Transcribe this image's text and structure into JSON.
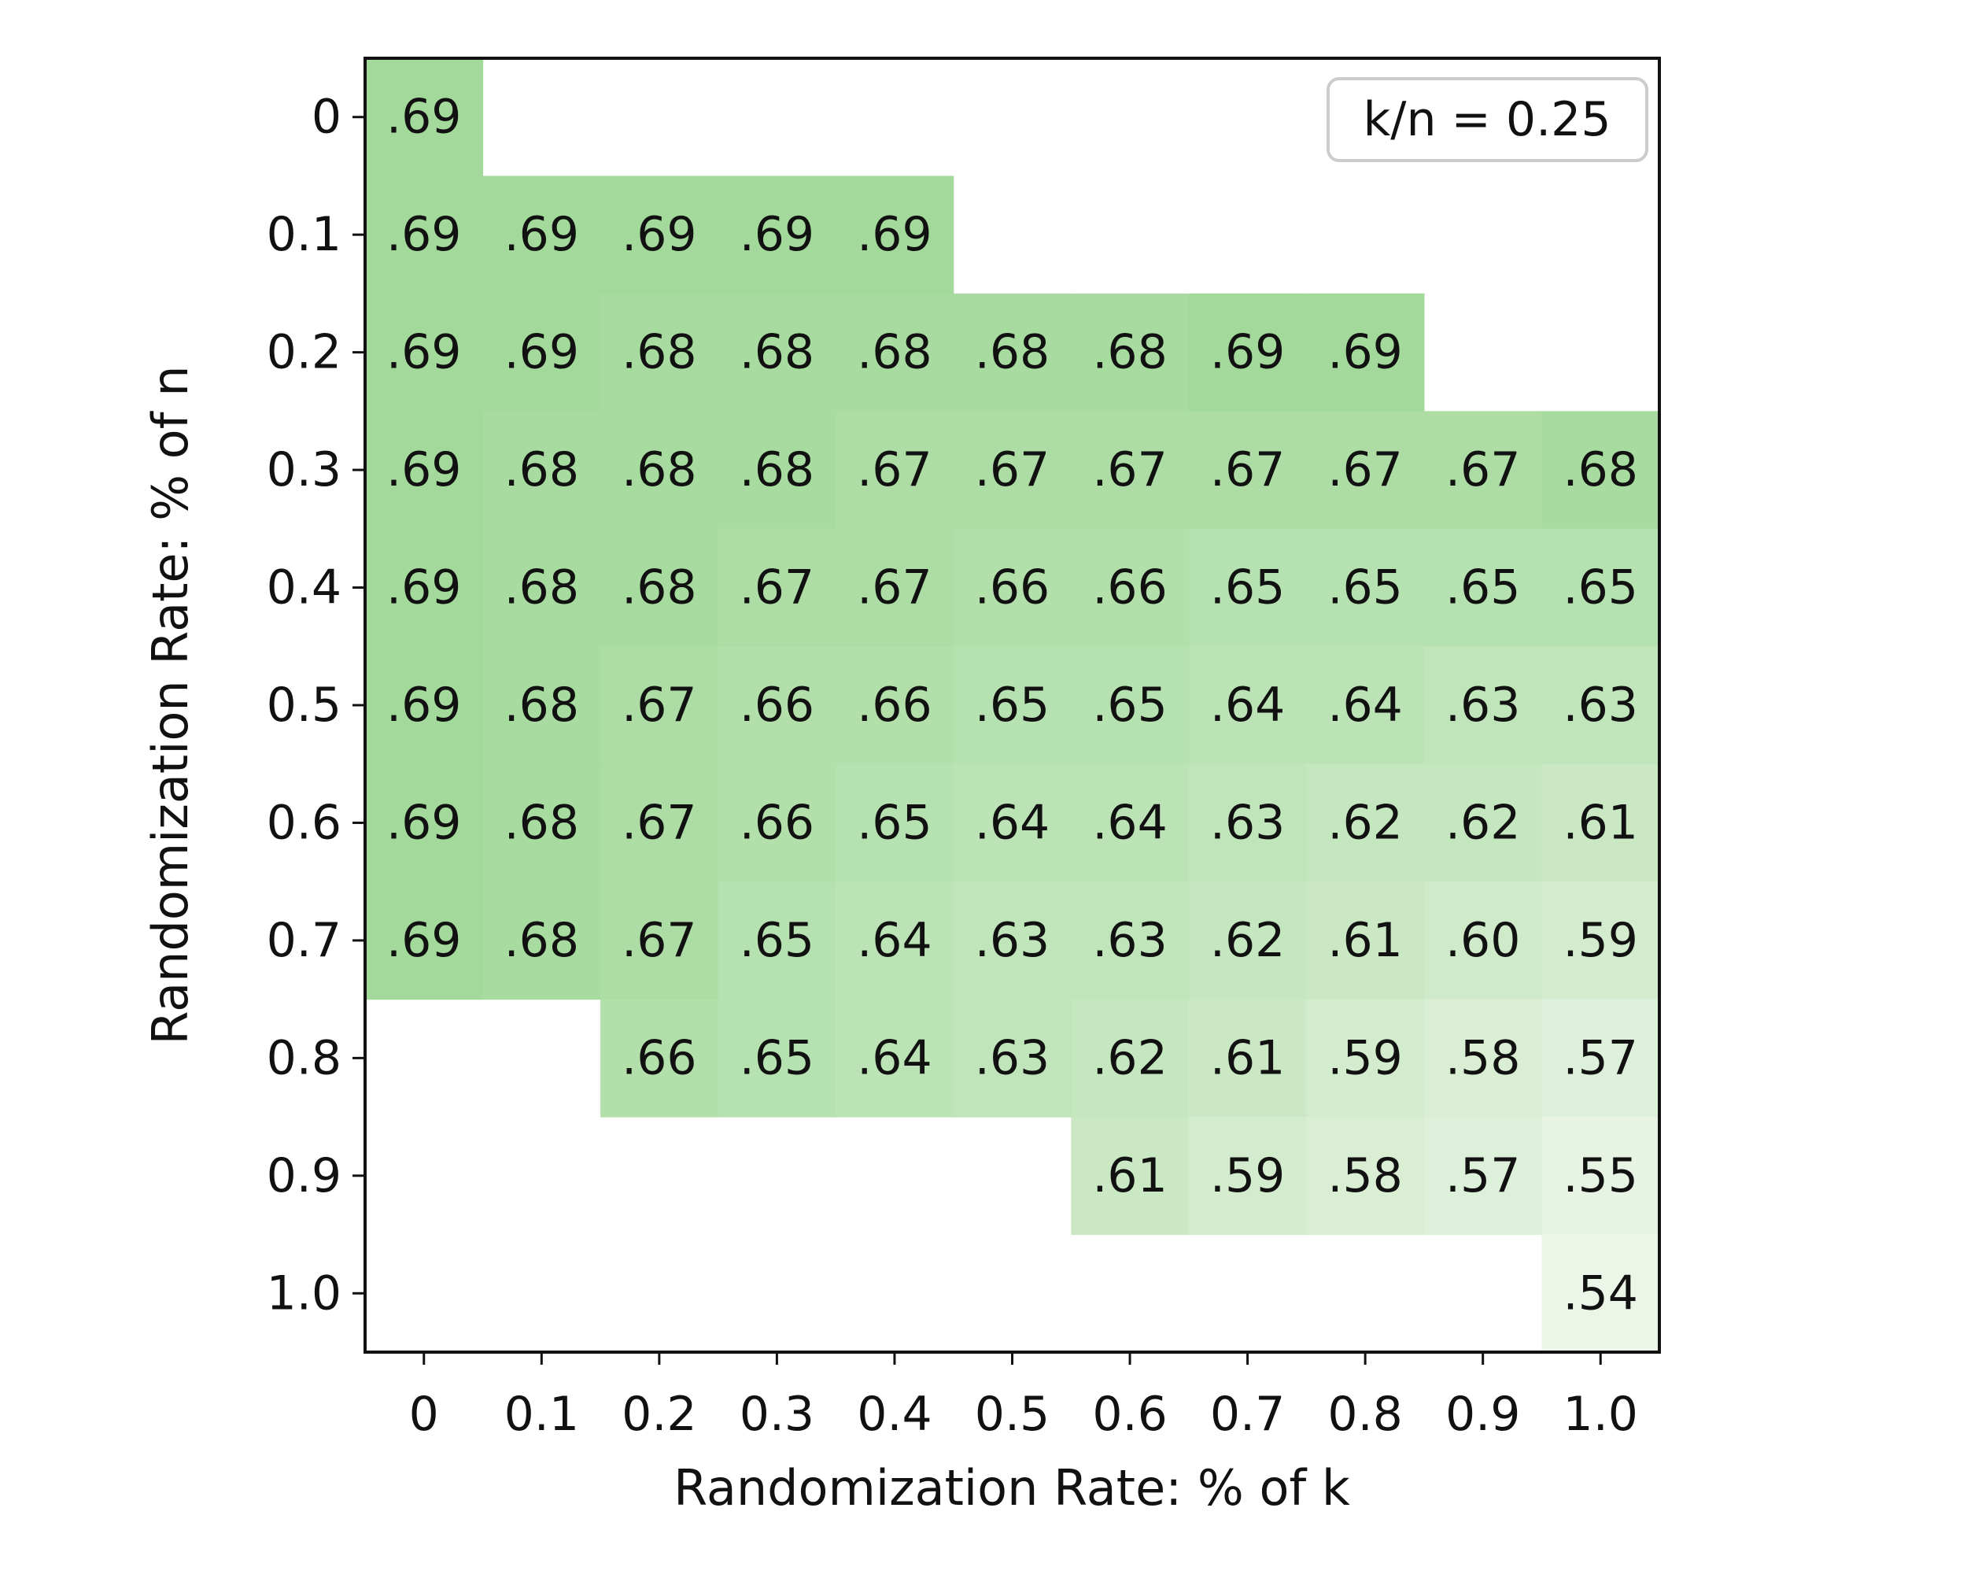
{
  "chart_data": {
    "type": "heatmap",
    "title": "",
    "xlabel": "Randomization Rate: % of k",
    "ylabel": "Randomization Rate: % of n",
    "x_categories": [
      "0",
      "0.1",
      "0.2",
      "0.3",
      "0.4",
      "0.5",
      "0.6",
      "0.7",
      "0.8",
      "0.9",
      "1.0"
    ],
    "y_categories": [
      "0",
      "0.1",
      "0.2",
      "0.3",
      "0.4",
      "0.5",
      "0.6",
      "0.7",
      "0.8",
      "0.9",
      "1.0"
    ],
    "values": [
      [
        0.69,
        null,
        null,
        null,
        null,
        null,
        null,
        null,
        null,
        null,
        null
      ],
      [
        0.69,
        0.69,
        0.69,
        0.69,
        0.69,
        null,
        null,
        null,
        null,
        null,
        null
      ],
      [
        0.69,
        0.69,
        0.68,
        0.68,
        0.68,
        0.68,
        0.68,
        0.69,
        0.69,
        null,
        null
      ],
      [
        0.69,
        0.68,
        0.68,
        0.68,
        0.67,
        0.67,
        0.67,
        0.67,
        0.67,
        0.67,
        0.68
      ],
      [
        0.69,
        0.68,
        0.68,
        0.67,
        0.67,
        0.66,
        0.66,
        0.65,
        0.65,
        0.65,
        0.65
      ],
      [
        0.69,
        0.68,
        0.67,
        0.66,
        0.66,
        0.65,
        0.65,
        0.64,
        0.64,
        0.63,
        0.63
      ],
      [
        0.69,
        0.68,
        0.67,
        0.66,
        0.65,
        0.64,
        0.64,
        0.63,
        0.62,
        0.62,
        0.61
      ],
      [
        0.69,
        0.68,
        0.67,
        0.65,
        0.64,
        0.63,
        0.63,
        0.62,
        0.61,
        0.6,
        0.59
      ],
      [
        null,
        null,
        0.66,
        0.65,
        0.64,
        0.63,
        0.62,
        0.61,
        0.59,
        0.58,
        0.57
      ],
      [
        null,
        null,
        null,
        null,
        null,
        null,
        0.61,
        0.59,
        0.58,
        0.57,
        0.55
      ],
      [
        null,
        null,
        null,
        null,
        null,
        null,
        null,
        null,
        null,
        null,
        0.54
      ]
    ],
    "cell_labels": [
      [
        ".69",
        "",
        "",
        "",
        "",
        "",
        "",
        "",
        "",
        "",
        ""
      ],
      [
        ".69",
        ".69",
        ".69",
        ".69",
        ".69",
        "",
        "",
        "",
        "",
        "",
        ""
      ],
      [
        ".69",
        ".69",
        ".68",
        ".68",
        ".68",
        ".68",
        ".68",
        ".69",
        ".69",
        "",
        ""
      ],
      [
        ".69",
        ".68",
        ".68",
        ".68",
        ".67",
        ".67",
        ".67",
        ".67",
        ".67",
        ".67",
        ".68"
      ],
      [
        ".69",
        ".68",
        ".68",
        ".67",
        ".67",
        ".66",
        ".66",
        ".65",
        ".65",
        ".65",
        ".65"
      ],
      [
        ".69",
        ".68",
        ".67",
        ".66",
        ".66",
        ".65",
        ".65",
        ".64",
        ".64",
        ".63",
        ".63"
      ],
      [
        ".69",
        ".68",
        ".67",
        ".66",
        ".65",
        ".64",
        ".64",
        ".63",
        ".62",
        ".62",
        ".61"
      ],
      [
        ".69",
        ".68",
        ".67",
        ".65",
        ".64",
        ".63",
        ".63",
        ".62",
        ".61",
        ".60",
        ".59"
      ],
      [
        "",
        "",
        ".66",
        ".65",
        ".64",
        ".63",
        ".62",
        ".61",
        ".59",
        ".58",
        ".57"
      ],
      [
        "",
        "",
        "",
        "",
        "",
        "",
        ".61",
        ".59",
        ".58",
        ".57",
        ".55"
      ],
      [
        "",
        "",
        "",
        "",
        "",
        "",
        "",
        "",
        "",
        "",
        ".54"
      ]
    ],
    "color_scale": {
      "low": "#ecf6e8",
      "high": "#a3d99b",
      "vmin": 0.54,
      "vmax": 0.69
    },
    "legend": {
      "text": "k/n = 0.25",
      "placement": "top-right"
    },
    "grid": false
  }
}
